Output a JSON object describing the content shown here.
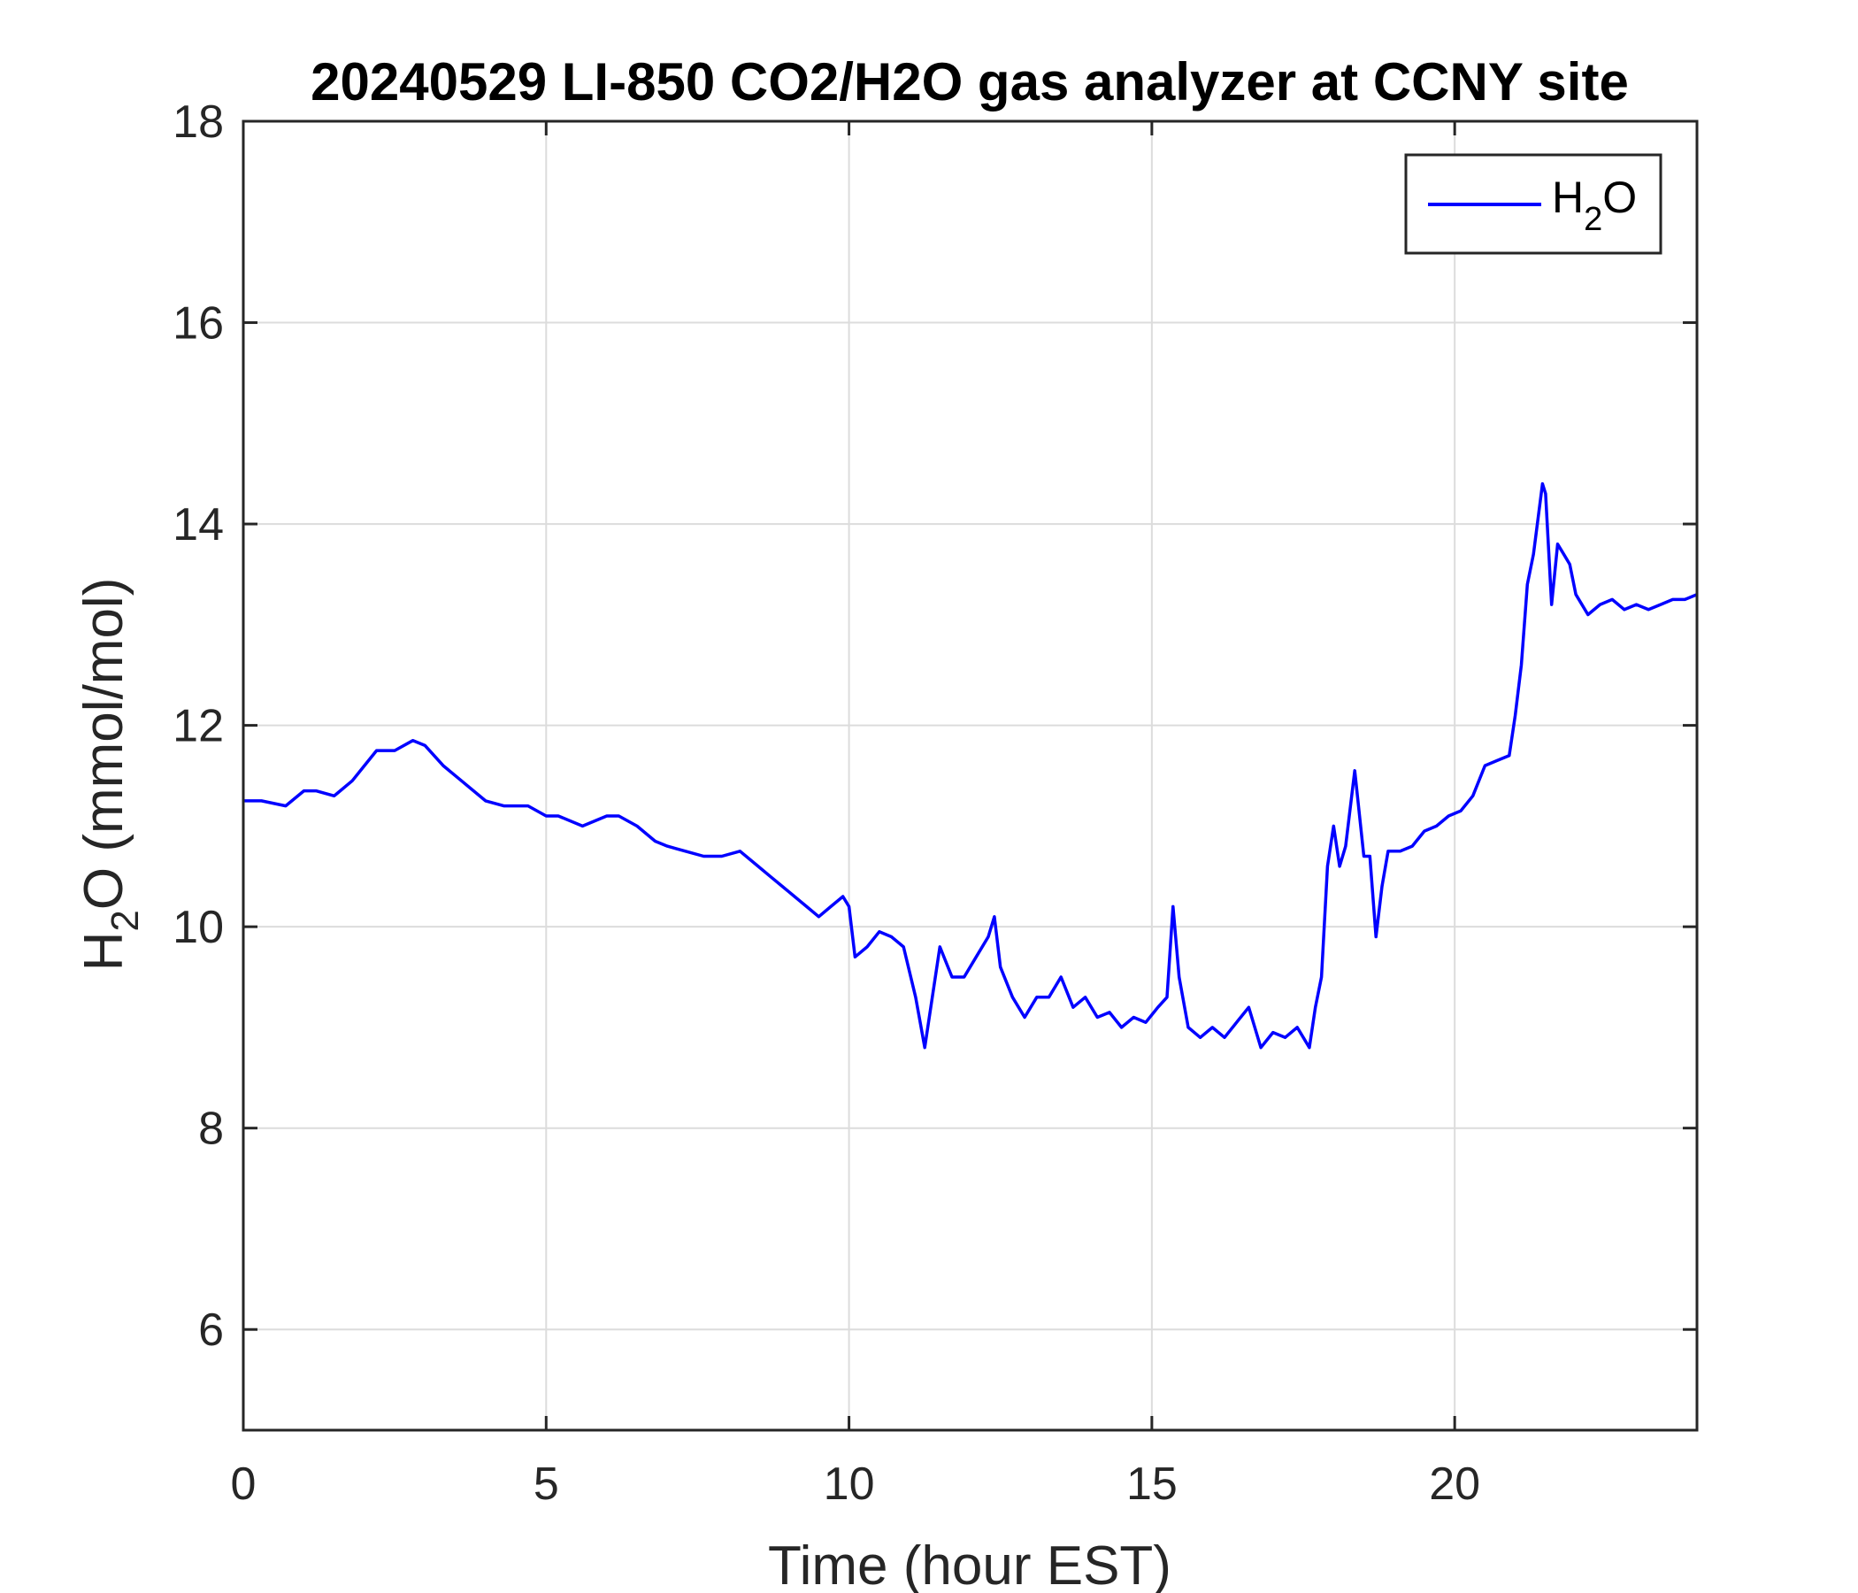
{
  "chart_data": {
    "type": "line",
    "title": "20240529 LI-850 CO2/H2O gas analyzer at CCNY site",
    "xlabel": "Time (hour EST)",
    "ylabel": {
      "base": "H",
      "sub": "2",
      "rest": "O (mmol/mol)"
    },
    "xlim": [
      0,
      24
    ],
    "ylim": [
      5,
      18
    ],
    "xticks": [
      0,
      5,
      10,
      15,
      20
    ],
    "yticks": [
      6,
      8,
      10,
      12,
      14,
      16,
      18
    ],
    "xtick_labels": [
      "0",
      "5",
      "10",
      "15",
      "20"
    ],
    "ytick_labels": [
      "6",
      "8",
      "10",
      "12",
      "14",
      "16",
      "18"
    ],
    "grid": true,
    "legend_position": "top-right",
    "series": [
      {
        "name": {
          "base": "H",
          "sub": "2",
          "rest": "O"
        },
        "color": "#0000ff",
        "x": [
          0,
          0.3,
          0.7,
          1.0,
          1.2,
          1.5,
          1.8,
          2.0,
          2.2,
          2.5,
          2.8,
          3.0,
          3.3,
          3.6,
          4.0,
          4.3,
          4.7,
          5.0,
          5.2,
          5.6,
          6.0,
          6.2,
          6.5,
          6.8,
          7.0,
          7.3,
          7.6,
          7.9,
          8.2,
          8.5,
          8.7,
          8.9,
          9.1,
          9.3,
          9.5,
          9.7,
          9.9,
          10.0,
          10.1,
          10.3,
          10.5,
          10.7,
          10.9,
          11.1,
          11.25,
          11.3,
          11.5,
          11.7,
          11.9,
          12.1,
          12.3,
          12.4,
          12.5,
          12.7,
          12.9,
          13.1,
          13.3,
          13.5,
          13.7,
          13.9,
          14.1,
          14.3,
          14.5,
          14.7,
          14.9,
          15.1,
          15.25,
          15.35,
          15.45,
          15.6,
          15.8,
          16.0,
          16.2,
          16.4,
          16.6,
          16.8,
          17.0,
          17.2,
          17.4,
          17.6,
          17.7,
          17.8,
          17.9,
          18.0,
          18.1,
          18.2,
          18.35,
          18.5,
          18.6,
          18.7,
          18.8,
          18.9,
          19.1,
          19.3,
          19.5,
          19.7,
          19.9,
          20.1,
          20.3,
          20.5,
          20.7,
          20.9,
          21.0,
          21.1,
          21.2,
          21.3,
          21.45,
          21.5,
          21.6,
          21.7,
          21.8,
          21.9,
          22.0,
          22.2,
          22.4,
          22.6,
          22.8,
          23.0,
          23.2,
          23.4,
          23.6,
          23.8,
          24.0
        ],
        "y": [
          11.25,
          11.25,
          11.2,
          11.35,
          11.35,
          11.3,
          11.45,
          11.6,
          11.75,
          11.75,
          11.85,
          11.8,
          11.6,
          11.45,
          11.25,
          11.2,
          11.2,
          11.1,
          11.1,
          11.0,
          11.1,
          11.1,
          11.0,
          10.85,
          10.8,
          10.75,
          10.7,
          10.7,
          10.75,
          10.6,
          10.5,
          10.4,
          10.3,
          10.2,
          10.1,
          10.2,
          10.3,
          10.2,
          9.7,
          9.8,
          9.95,
          9.9,
          9.8,
          9.3,
          8.8,
          9.0,
          9.8,
          9.5,
          9.5,
          9.7,
          9.9,
          10.1,
          9.6,
          9.3,
          9.1,
          9.3,
          9.3,
          9.5,
          9.2,
          9.3,
          9.1,
          9.15,
          9.0,
          9.1,
          9.05,
          9.2,
          9.3,
          10.2,
          9.5,
          9.0,
          8.9,
          9.0,
          8.9,
          9.05,
          9.2,
          8.8,
          8.95,
          8.9,
          9.0,
          8.8,
          9.2,
          9.5,
          10.6,
          11.0,
          10.6,
          10.8,
          11.55,
          10.7,
          10.7,
          9.9,
          10.4,
          10.75,
          10.75,
          10.8,
          10.95,
          11.0,
          11.1,
          11.15,
          11.3,
          11.6,
          11.65,
          11.7,
          12.1,
          12.6,
          13.4,
          13.7,
          14.4,
          14.3,
          13.2,
          13.8,
          13.7,
          13.6,
          13.3,
          13.1,
          13.2,
          13.25,
          13.15,
          13.2,
          13.15,
          13.2,
          13.25,
          13.25,
          13.3
        ]
      }
    ]
  }
}
